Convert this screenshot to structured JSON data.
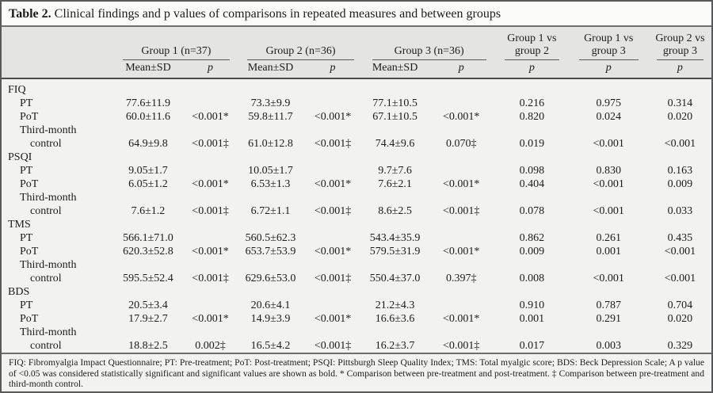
{
  "title": {
    "label": "Table 2.",
    "text": "Clinical findings and p values of comparisons in repeated measures and between groups"
  },
  "header": {
    "groups": [
      {
        "label": "Group 1 (n=37)"
      },
      {
        "label": "Group 2 (n=36)"
      },
      {
        "label": "Group 3 (n=36)"
      }
    ],
    "comparisons": [
      {
        "line1": "Group 1 vs",
        "line2": "group 2"
      },
      {
        "line1": "Group 1 vs",
        "line2": "group 3"
      },
      {
        "line1": "Group 2 vs",
        "line2": "group 3"
      }
    ],
    "sub": {
      "mean_sd": "Mean±SD",
      "p": "p"
    }
  },
  "sections": [
    {
      "name": "FIQ",
      "rows": [
        {
          "label": "PT",
          "indent": 1,
          "cells": [
            "77.6±11.9",
            "",
            "73.3±9.9",
            "",
            "77.1±10.5",
            "",
            "0.216",
            "0.975",
            "0.314"
          ]
        },
        {
          "label": "PoT",
          "indent": 1,
          "cells": [
            "60.0±11.6",
            "<0.001*",
            "59.8±11.7",
            "<0.001*",
            "67.1±10.5",
            "<0.001*",
            "0.820",
            "0.024",
            "0.020"
          ]
        },
        {
          "label": "Third-month",
          "indent": 1,
          "cells": []
        },
        {
          "label": "control",
          "indent": 2,
          "cells": [
            "64.9±9.8",
            "<0.001‡",
            "61.0±12.8",
            "<0.001‡",
            "74.4±9.6",
            "0.070‡",
            "0.019",
            "<0.001",
            "<0.001"
          ]
        }
      ]
    },
    {
      "name": "PSQI",
      "rows": [
        {
          "label": "PT",
          "indent": 1,
          "cells": [
            "9.05±1.7",
            "",
            "10.05±1.7",
            "",
            "9.7±7.6",
            "",
            "0.098",
            "0.830",
            "0.163"
          ]
        },
        {
          "label": "PoT",
          "indent": 1,
          "cells": [
            "6.05±1.2",
            "<0.001*",
            "6.53±1.3",
            "<0.001*",
            "7.6±2.1",
            "<0.001*",
            "0.404",
            "<0.001",
            "0.009"
          ]
        },
        {
          "label": "Third-month",
          "indent": 1,
          "cells": []
        },
        {
          "label": "control",
          "indent": 2,
          "cells": [
            "7.6±1.2",
            "<0.001‡",
            "6.72±1.1",
            "<0.001‡",
            "8.6±2.5",
            "<0.001‡",
            "0.078",
            "<0.001",
            "0.033"
          ]
        }
      ]
    },
    {
      "name": "TMS",
      "rows": [
        {
          "label": "PT",
          "indent": 1,
          "cells": [
            "566.1±71.0",
            "",
            "560.5±62.3",
            "",
            "543.4±35.9",
            "",
            "0.862",
            "0.261",
            "0.435"
          ]
        },
        {
          "label": "PoT",
          "indent": 1,
          "cells": [
            "620.3±52.8",
            "<0.001*",
            "653.7±53.9",
            "<0.001*",
            "579.5±31.9",
            "<0.001*",
            "0.009",
            "0.001",
            "<0.001"
          ]
        },
        {
          "label": "Third-month",
          "indent": 1,
          "cells": []
        },
        {
          "label": "control",
          "indent": 2,
          "cells": [
            "595.5±52.4",
            "<0.001‡",
            "629.6±53.0",
            "<0.001‡",
            "550.4±37.0",
            "0.397‡",
            "0.008",
            "<0.001",
            "<0.001"
          ]
        }
      ]
    },
    {
      "name": "BDS",
      "rows": [
        {
          "label": "PT",
          "indent": 1,
          "cells": [
            "20.5±3.4",
            "",
            "20.6±4.1",
            "",
            "21.2±4.3",
            "",
            "0.910",
            "0.787",
            "0.704"
          ]
        },
        {
          "label": "PoT",
          "indent": 1,
          "cells": [
            "17.9±2.7",
            "<0.001*",
            "14.9±3.9",
            "<0.001*",
            "16.6±3.6",
            "<0.001*",
            "0.001",
            "0.291",
            "0.020"
          ]
        },
        {
          "label": "Third-month",
          "indent": 1,
          "cells": []
        },
        {
          "label": "control",
          "indent": 2,
          "cells": [
            "18.8±2.5",
            "0.002‡",
            "16.5±4.2",
            "<0.001‡",
            "16.2±3.7",
            "<0.001‡",
            "0.017",
            "0.003",
            "0.329"
          ]
        }
      ]
    }
  ],
  "footnote": {
    "text": "FIQ: Fibromyalgia Impact Questionnaire; PT: Pre-treatment; PoT: Post-treatment; PSQI: Pittsburgh Sleep Quality Index; TMS: Total myalgic score; BDS: Beck Depression Scale; A p value of <0.05 was considered statistically significant and significant values are shown as bold. * Comparison between pre-treatment and post-treatment. ‡ Comparison between pre-treatment and third-month control."
  }
}
